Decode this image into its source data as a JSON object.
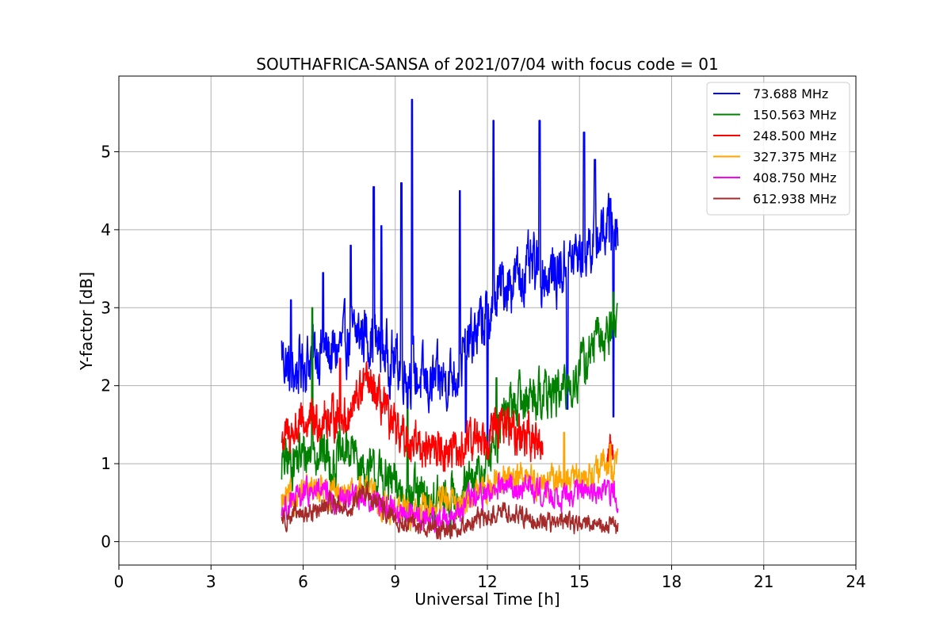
{
  "chart_data": {
    "type": "line",
    "title": "SOUTHAFRICA-SANSA of 2021/07/04 with focus code = 01",
    "xlabel": "Universal Time [h]",
    "ylabel": "Y-factor [dB]",
    "xlim": [
      0,
      24
    ],
    "ylim": [
      -0.3,
      5.97
    ],
    "xticks": [
      0,
      3,
      6,
      9,
      12,
      15,
      18,
      21,
      24
    ],
    "yticks": [
      0,
      1,
      2,
      3,
      4,
      5
    ],
    "xtick_labels": [
      "0",
      "3",
      "6",
      "9",
      "12",
      "15",
      "18",
      "21",
      "24"
    ],
    "ytick_labels": [
      "0",
      "1",
      "2",
      "3",
      "4",
      "5"
    ],
    "grid": true,
    "legend_position": "top-right",
    "series": [
      {
        "name": "  73.688 MHz",
        "color": "#0000ff",
        "x": [
          5.3,
          5.6,
          6.0,
          6.5,
          7.0,
          7.5,
          8.0,
          8.5,
          9.0,
          9.5,
          10.0,
          10.5,
          11.0,
          11.5,
          12.0,
          12.5,
          13.0,
          13.5,
          14.0,
          14.5,
          15.0,
          15.5,
          16.0,
          16.25
        ],
        "y": [
          2.45,
          2.1,
          2.3,
          2.45,
          2.4,
          2.6,
          2.7,
          2.5,
          2.3,
          2.2,
          2.0,
          2.05,
          2.2,
          2.6,
          2.9,
          3.3,
          3.4,
          3.5,
          3.4,
          3.5,
          3.7,
          3.9,
          4.05,
          4.1
        ],
        "noise": 0.3,
        "spikes": [
          [
            5.6,
            3.1
          ],
          [
            6.65,
            3.45
          ],
          [
            7.55,
            3.8
          ],
          [
            8.3,
            4.55
          ],
          [
            8.55,
            4.05
          ],
          [
            9.2,
            4.6
          ],
          [
            9.55,
            5.67
          ],
          [
            11.1,
            4.5
          ],
          [
            12.2,
            5.4
          ],
          [
            13.7,
            5.4
          ],
          [
            15.15,
            5.25
          ],
          [
            15.5,
            4.9
          ],
          [
            16.0,
            4.4
          ]
        ],
        "dips": [
          [
            9.4,
            1.7
          ],
          [
            11.3,
            1.4
          ],
          [
            12.0,
            1.15
          ],
          [
            14.6,
            1.7
          ],
          [
            16.1,
            1.6
          ]
        ]
      },
      {
        "name": "150.563 MHz",
        "color": "#008000",
        "x": [
          5.3,
          6.0,
          6.5,
          7.0,
          7.5,
          8.0,
          8.5,
          9.0,
          9.5,
          10.0,
          10.5,
          11.0,
          11.5,
          12.0,
          12.5,
          13.0,
          13.5,
          14.0,
          14.5,
          15.0,
          15.5,
          16.0,
          16.25
        ],
        "y": [
          1.0,
          1.1,
          1.2,
          1.0,
          1.2,
          0.9,
          0.8,
          0.7,
          0.6,
          0.5,
          0.5,
          0.6,
          0.7,
          1.0,
          1.6,
          1.8,
          1.9,
          1.9,
          1.9,
          2.2,
          2.5,
          2.7,
          2.9
        ],
        "noise": 0.25,
        "spikes": [
          [
            6.3,
            3.0
          ],
          [
            9.4,
            1.7
          ],
          [
            12.3,
            2.1
          ],
          [
            15.5,
            2.7
          ],
          [
            16.1,
            3.2
          ]
        ],
        "dips": [
          [
            10.8,
            0.1
          ]
        ]
      },
      {
        "name": "248.500 MHz",
        "color": "#ff0000",
        "x": [
          5.3,
          6.0,
          6.5,
          7.0,
          7.5,
          8.0,
          8.5,
          9.0,
          9.5,
          10.0,
          10.5,
          11.0,
          11.5,
          12.0,
          12.5,
          13.0,
          13.5,
          13.8
        ],
        "y": [
          1.3,
          1.5,
          1.55,
          1.6,
          1.6,
          2.05,
          1.8,
          1.4,
          1.3,
          1.2,
          1.2,
          1.1,
          1.3,
          1.4,
          1.5,
          1.4,
          1.3,
          1.2
        ],
        "noise": 0.2,
        "spikes": [
          [
            7.2,
            2.35
          ],
          [
            8.0,
            2.15
          ]
        ],
        "tail": [
          [
            15.9,
            1.0
          ],
          [
            16.0,
            1.3
          ],
          [
            16.1,
            1.1
          ]
        ]
      },
      {
        "name": "327.375 MHz",
        "color": "#ffa500",
        "x": [
          5.3,
          6.0,
          6.5,
          7.0,
          7.5,
          8.0,
          8.5,
          9.0,
          9.5,
          10.0,
          10.5,
          11.0,
          11.5,
          12.0,
          12.5,
          13.0,
          13.5,
          14.0,
          14.5,
          15.0,
          15.5,
          16.0,
          16.25
        ],
        "y": [
          0.5,
          0.6,
          0.7,
          0.6,
          0.6,
          0.7,
          0.5,
          0.4,
          0.4,
          0.4,
          0.5,
          0.5,
          0.6,
          0.7,
          0.8,
          0.85,
          0.8,
          0.75,
          0.8,
          0.8,
          0.9,
          0.95,
          1.0
        ],
        "noise": 0.15,
        "spikes": [
          [
            14.5,
            1.4
          ],
          [
            16.0,
            1.25
          ]
        ],
        "dips": []
      },
      {
        "name": "408.750 MHz",
        "color": "#ff00ff",
        "x": [
          5.3,
          6.0,
          6.5,
          7.0,
          7.5,
          8.0,
          8.5,
          9.0,
          9.5,
          10.0,
          10.5,
          11.0,
          11.5,
          12.0,
          12.5,
          13.0,
          13.5,
          14.0,
          14.5,
          15.0,
          15.5,
          16.0,
          16.25
        ],
        "y": [
          0.4,
          0.6,
          0.65,
          0.5,
          0.55,
          0.6,
          0.5,
          0.4,
          0.35,
          0.3,
          0.3,
          0.35,
          0.55,
          0.6,
          0.7,
          0.7,
          0.7,
          0.6,
          0.6,
          0.65,
          0.6,
          0.65,
          0.6
        ],
        "noise": 0.13,
        "spikes": [],
        "dips": []
      },
      {
        "name": "612.938 MHz",
        "color": "#a52a2a",
        "x": [
          5.3,
          6.0,
          6.5,
          7.0,
          7.5,
          8.0,
          8.5,
          9.0,
          9.5,
          10.0,
          10.5,
          11.0,
          11.5,
          12.0,
          12.5,
          13.0,
          13.5,
          14.0,
          14.5,
          15.0,
          15.5,
          16.0,
          16.25
        ],
        "y": [
          0.3,
          0.35,
          0.4,
          0.5,
          0.4,
          0.65,
          0.45,
          0.25,
          0.2,
          0.2,
          0.15,
          0.18,
          0.25,
          0.3,
          0.4,
          0.35,
          0.3,
          0.25,
          0.25,
          0.25,
          0.2,
          0.2,
          0.2
        ],
        "noise": 0.1,
        "spikes": [],
        "dips": []
      }
    ]
  }
}
